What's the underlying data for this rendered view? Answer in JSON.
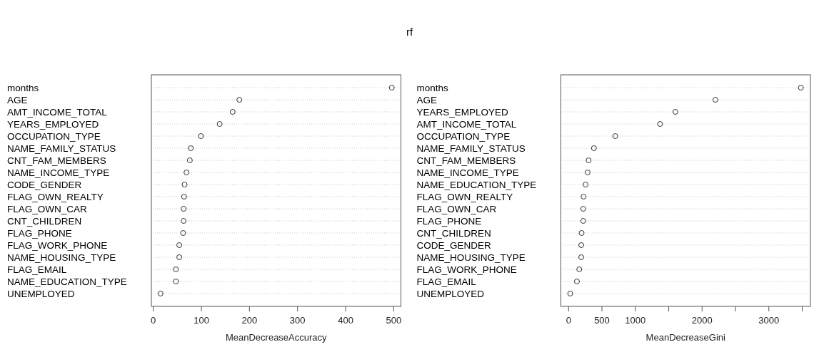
{
  "chart_data": [
    {
      "type": "scatter",
      "title": "rf",
      "orientation": "horizontal",
      "marker": "circle",
      "grid": "y",
      "color": "#333333",
      "categories": [
        "months",
        "AGE",
        "AMT_INCOME_TOTAL",
        "YEARS_EMPLOYED",
        "OCCUPATION_TYPE",
        "NAME_FAMILY_STATUS",
        "CNT_FAM_MEMBERS",
        "NAME_INCOME_TYPE",
        "CODE_GENDER",
        "FLAG_OWN_REALTY",
        "FLAG_OWN_CAR",
        "CNT_CHILDREN",
        "FLAG_PHONE",
        "FLAG_WORK_PHONE",
        "NAME_HOUSING_TYPE",
        "FLAG_EMAIL",
        "NAME_EDUCATION_TYPE",
        "UNEMPLOYED"
      ],
      "values": [
        496,
        179,
        165,
        138,
        99,
        78,
        76,
        69,
        65,
        64,
        63,
        63,
        62,
        54,
        54,
        47,
        47,
        15
      ],
      "xlim": [
        -4,
        515
      ],
      "xticks": [
        0,
        100,
        200,
        300,
        400,
        500
      ],
      "xlabel": "MeanDecreaseAccuracy"
    },
    {
      "type": "scatter",
      "orientation": "horizontal",
      "marker": "circle",
      "grid": "y",
      "color": "#333333",
      "categories": [
        "months",
        "AGE",
        "YEARS_EMPLOYED",
        "AMT_INCOME_TOTAL",
        "OCCUPATION_TYPE",
        "NAME_FAMILY_STATUS",
        "CNT_FAM_MEMBERS",
        "NAME_INCOME_TYPE",
        "NAME_EDUCATION_TYPE",
        "FLAG_OWN_REALTY",
        "FLAG_OWN_CAR",
        "FLAG_PHONE",
        "CNT_CHILDREN",
        "CODE_GENDER",
        "NAME_HOUSING_TYPE",
        "FLAG_WORK_PHONE",
        "FLAG_EMAIL",
        "UNEMPLOYED"
      ],
      "values": [
        3480,
        2200,
        1600,
        1370,
        700,
        380,
        300,
        285,
        255,
        225,
        220,
        220,
        195,
        190,
        190,
        160,
        125,
        25
      ],
      "xlim": [
        -115,
        3623
      ],
      "xticks": [
        0,
        500,
        1000,
        {
          "value": 1500,
          "label": null
        },
        2000,
        {
          "value": 2500,
          "label": null
        },
        3000,
        {
          "value": 3500,
          "label": null
        }
      ],
      "xlabel": "MeanDecreaseGini"
    }
  ]
}
